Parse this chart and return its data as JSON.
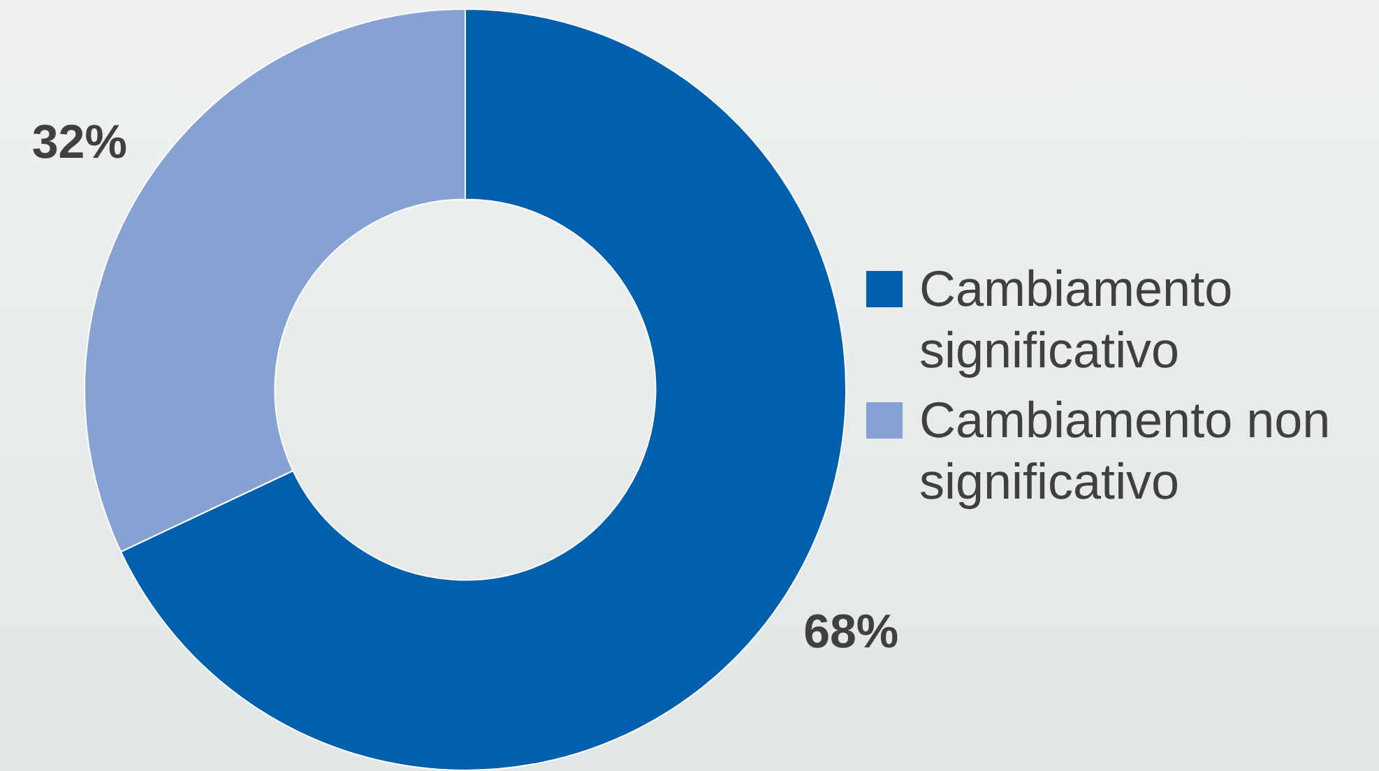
{
  "chart_data": {
    "type": "donut",
    "categories": [
      "Cambiamento significativo",
      "Cambiamento non significativo"
    ],
    "values": [
      68,
      32
    ],
    "colors": [
      "#0060ae",
      "#86a2d2"
    ],
    "value_labels": [
      "68%",
      "32%"
    ],
    "legend": "right"
  }
}
